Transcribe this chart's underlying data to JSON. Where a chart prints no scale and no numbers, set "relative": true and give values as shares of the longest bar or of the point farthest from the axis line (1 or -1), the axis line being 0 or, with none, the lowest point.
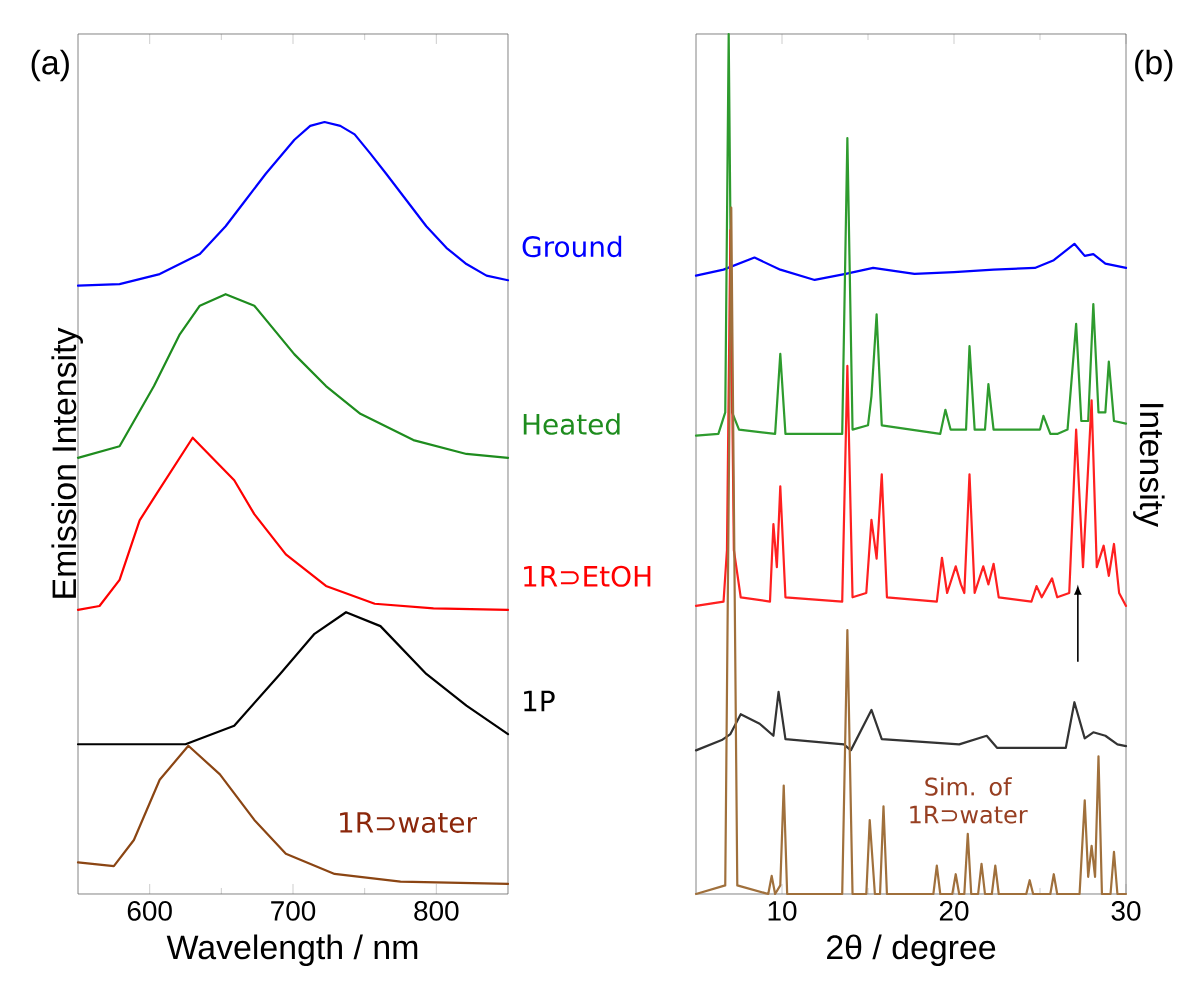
{
  "chart_data": [
    {
      "type": "line",
      "title": "(a)",
      "xlabel": "Wavelength / nm",
      "ylabel": "Emission Intensity",
      "relative": true,
      "xlim": [
        550,
        850
      ],
      "xticks": [
        600,
        700,
        800
      ],
      "legend": false,
      "grid": false,
      "series": [
        {
          "name": "Ground",
          "color": "#0000ff",
          "x": [
            550,
            579,
            607,
            635,
            653,
            667,
            681,
            701,
            712,
            722,
            733,
            743,
            754,
            765,
            779,
            793,
            807,
            821,
            835,
            850
          ],
          "values": [
            0.788,
            0.79,
            0.803,
            0.829,
            0.865,
            0.899,
            0.933,
            0.977,
            0.995,
            1.0,
            0.995,
            0.984,
            0.959,
            0.933,
            0.899,
            0.865,
            0.837,
            0.816,
            0.801,
            0.795
          ]
        },
        {
          "name": "Heated",
          "color": "#1e8c1e",
          "x": [
            550,
            579,
            603,
            621,
            635,
            653,
            673,
            701,
            723,
            747,
            784,
            821,
            850
          ],
          "values": [
            0.565,
            0.58,
            0.658,
            0.725,
            0.762,
            0.777,
            0.762,
            0.699,
            0.658,
            0.622,
            0.588,
            0.57,
            0.565
          ]
        },
        {
          "name": "1R⊃EtOH",
          "color": "#ff0000",
          "x": [
            550,
            565,
            579,
            593,
            604,
            630,
            659,
            673,
            695,
            723,
            757,
            798,
            850
          ],
          "values": [
            0.368,
            0.373,
            0.407,
            0.484,
            0.516,
            0.591,
            0.536,
            0.492,
            0.44,
            0.399,
            0.376,
            0.37,
            0.368
          ]
        },
        {
          "name": "1P",
          "color": "#000000",
          "x": [
            550,
            625,
            659,
            691,
            715,
            737,
            761,
            793,
            821,
            850
          ],
          "values": [
            0.194,
            0.194,
            0.218,
            0.285,
            0.337,
            0.365,
            0.347,
            0.285,
            0.244,
            0.207
          ]
        },
        {
          "name": "1R⊃water",
          "color": "#8b4513",
          "x": [
            550,
            575,
            589,
            607,
            627,
            649,
            673,
            695,
            729,
            775,
            850
          ],
          "values": [
            0.041,
            0.036,
            0.07,
            0.148,
            0.192,
            0.155,
            0.096,
            0.052,
            0.026,
            0.016,
            0.013
          ]
        }
      ]
    },
    {
      "type": "line",
      "title": "(b)",
      "xlabel": "2θ / degree",
      "ylabel": "Intensity",
      "relative": true,
      "xlim": [
        5,
        30
      ],
      "xticks": [
        10,
        20,
        30
      ],
      "legend": false,
      "grid": false,
      "series": [
        {
          "color": "#0000ff",
          "x": [
            5.0,
            6.6,
            8.4,
            9.9,
            11.9,
            13.7,
            15.3,
            17.7,
            20.0,
            22.3,
            24.7,
            25.8,
            27.0,
            27.6,
            28.1,
            28.8,
            30.0
          ],
          "values": [
            0.719,
            0.726,
            0.74,
            0.726,
            0.714,
            0.721,
            0.728,
            0.721,
            0.723,
            0.726,
            0.728,
            0.737,
            0.756,
            0.742,
            0.744,
            0.733,
            0.728
          ]
        },
        {
          "color": "#2e9b2e",
          "x": [
            5.0,
            6.3,
            6.7,
            6.9,
            7.1,
            7.5,
            9.6,
            9.9,
            10.2,
            13.5,
            13.8,
            14.1,
            15.0,
            15.2,
            15.5,
            15.8,
            19.2,
            19.5,
            19.8,
            20.7,
            20.9,
            21.2,
            21.8,
            22.0,
            22.3,
            25.0,
            25.2,
            25.6,
            26.0,
            26.6,
            27.1,
            27.4,
            27.8,
            28.1,
            28.4,
            28.8,
            29.0,
            29.3,
            30.0
          ],
          "values": [
            0.533,
            0.535,
            0.56,
            1.0,
            0.56,
            0.54,
            0.535,
            0.628,
            0.535,
            0.535,
            0.879,
            0.54,
            0.545,
            0.579,
            0.674,
            0.545,
            0.535,
            0.563,
            0.54,
            0.54,
            0.637,
            0.54,
            0.54,
            0.593,
            0.54,
            0.54,
            0.556,
            0.535,
            0.535,
            0.54,
            0.663,
            0.55,
            0.55,
            0.686,
            0.56,
            0.56,
            0.619,
            0.55,
            0.547
          ]
        },
        {
          "color": "#ff2020",
          "x": [
            5.0,
            6.6,
            6.8,
            7.0,
            7.2,
            7.6,
            9.3,
            9.5,
            9.7,
            9.9,
            10.2,
            13.5,
            13.8,
            14.1,
            14.9,
            15.2,
            15.5,
            15.8,
            16.1,
            19.0,
            19.3,
            19.6,
            20.1,
            20.4,
            20.6,
            20.9,
            21.2,
            21.7,
            22.0,
            22.3,
            22.6,
            24.5,
            24.8,
            25.1,
            25.7,
            26.0,
            26.7,
            27.1,
            27.5,
            28.0,
            28.3,
            28.7,
            29.0,
            29.3,
            29.6,
            30.0
          ],
          "values": [
            0.335,
            0.34,
            0.4,
            0.772,
            0.4,
            0.345,
            0.34,
            0.43,
            0.38,
            0.474,
            0.345,
            0.34,
            0.614,
            0.345,
            0.35,
            0.435,
            0.39,
            0.488,
            0.345,
            0.34,
            0.391,
            0.35,
            0.381,
            0.36,
            0.35,
            0.488,
            0.35,
            0.381,
            0.36,
            0.384,
            0.345,
            0.34,
            0.358,
            0.345,
            0.367,
            0.345,
            0.35,
            0.54,
            0.38,
            0.574,
            0.38,
            0.405,
            0.37,
            0.407,
            0.35,
            0.335
          ]
        },
        {
          "color": "#333333",
          "x": [
            5.0,
            6.5,
            7.0,
            7.6,
            8.7,
            9.5,
            9.8,
            10.2,
            13.6,
            14.0,
            15.2,
            15.8,
            20.3,
            21.9,
            22.5,
            26.5,
            27.0,
            27.6,
            28.1,
            28.8,
            29.5,
            30.0
          ],
          "values": [
            0.167,
            0.179,
            0.186,
            0.209,
            0.198,
            0.184,
            0.235,
            0.18,
            0.174,
            0.167,
            0.214,
            0.18,
            0.174,
            0.184,
            0.17,
            0.17,
            0.223,
            0.181,
            0.188,
            0.184,
            0.174,
            0.172
          ]
        },
        {
          "name": "Sim. of 1R⊃water",
          "color": "#a0703c",
          "x": [
            5.0,
            6.7,
            7.05,
            7.4,
            9.2,
            9.4,
            9.6,
            9.9,
            10.1,
            10.3,
            13.5,
            13.8,
            14.1,
            14.9,
            15.1,
            15.4,
            15.7,
            15.9,
            16.1,
            18.8,
            19.0,
            19.2,
            19.9,
            20.1,
            20.3,
            20.6,
            20.8,
            21.0,
            21.4,
            21.6,
            21.8,
            22.2,
            22.4,
            22.6,
            24.2,
            24.4,
            24.6,
            25.6,
            25.8,
            26.0,
            27.3,
            27.6,
            27.8,
            28.0,
            28.2,
            28.4,
            28.6,
            29.1,
            29.3,
            29.5,
            30.0
          ],
          "values": [
            0.0,
            0.01,
            0.798,
            0.01,
            0.0,
            0.021,
            0.0,
            0.01,
            0.126,
            0.0,
            0.0,
            0.307,
            0.0,
            0.0,
            0.086,
            0.0,
            0.0,
            0.102,
            0.0,
            0.0,
            0.033,
            0.0,
            0.0,
            0.023,
            0.0,
            0.0,
            0.07,
            0.0,
            0.0,
            0.035,
            0.0,
            0.0,
            0.033,
            0.0,
            0.0,
            0.016,
            0.0,
            0.0,
            0.023,
            0.0,
            0.0,
            0.109,
            0.02,
            0.056,
            0.02,
            0.16,
            0.0,
            0.0,
            0.049,
            0.0,
            0.0
          ]
        }
      ]
    }
  ]
}
